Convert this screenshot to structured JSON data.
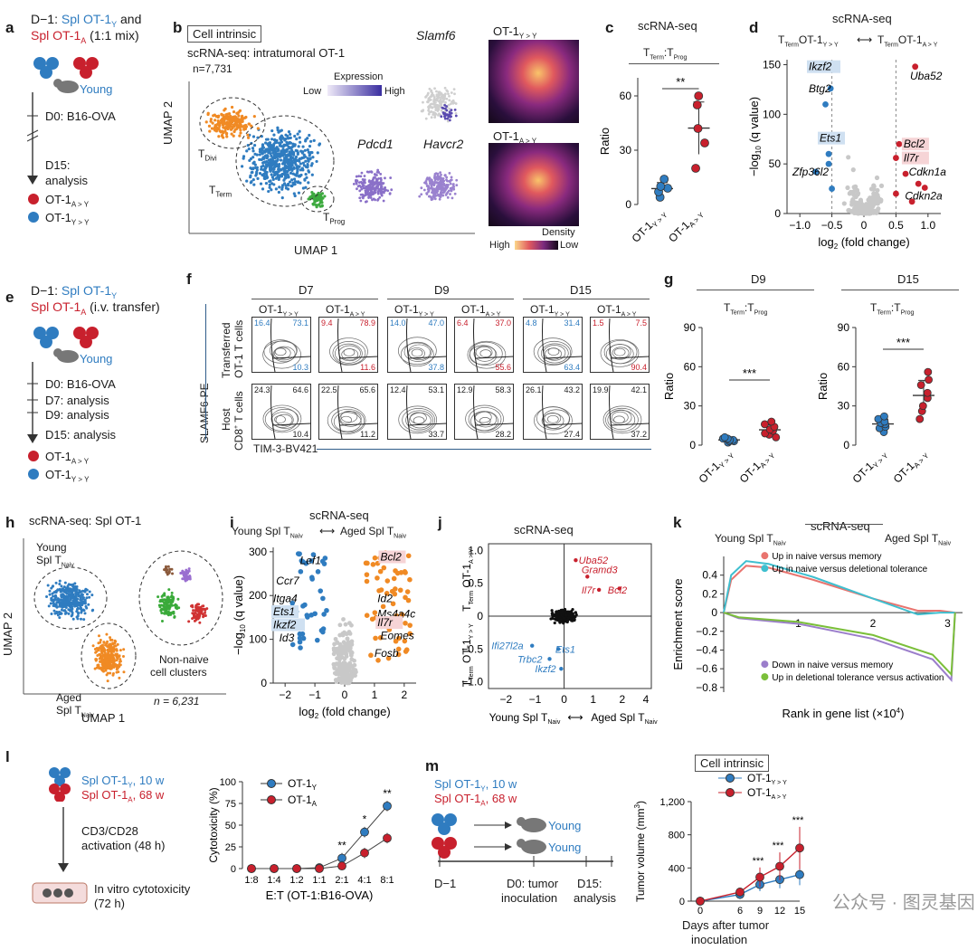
{
  "colors": {
    "young": "#2f7cc0",
    "aged": "#c8202d",
    "orange": "#f08a24",
    "green": "#3daa3f",
    "grey": "#c8c8c8",
    "pink": "#e9746f",
    "teal": "#3fbfcf",
    "purple": "#9b7ecb",
    "lime": "#7bbf3a"
  },
  "a": {
    "label": "a",
    "d1": "D−1:",
    "spl_y": "Spl OT-1",
    "spl_y_sub": "Y",
    "and": " and",
    "spl_a": "Spl OT-1",
    "spl_a_sub": "A",
    "mix": "(1:1 mix)",
    "young": "Young",
    "d0": "D0: B16-OVA",
    "d15": "D15:",
    "analysis": "analysis",
    "leg1": "OT-1",
    "leg1_sub": "A > Y",
    "leg2": "OT-1",
    "leg2_sub": "Y > Y"
  },
  "b": {
    "label": "b",
    "box": "Cell intrinsic",
    "title": "scRNA-seq: intratumoral OT-1",
    "n": "n=7,731",
    "expression": "Expression",
    "low": "Low",
    "high": "High",
    "slamf6": "Slamf6",
    "pdcd1": "Pdcd1",
    "havcr2": "Havcr2",
    "tdivi": "T",
    "tdivi_sub": "Divi",
    "tterm": "T",
    "tterm_sub": "Term",
    "tprog": "T",
    "tprog_sub": "Prog",
    "umap1": "UMAP 1",
    "umap2": "UMAP 2",
    "ot1yy": "OT-1",
    "ot1yy_sub": "Y > Y",
    "ot1ay": "OT-1",
    "ot1ay_sub": "A > Y",
    "density": "Density",
    "dhigh": "High",
    "dlow": "Low"
  },
  "c": {
    "label": "c",
    "title": "scRNA-seq",
    "ratio": "T",
    "ratio_sub1": "Term",
    "ratio_mid": ":T",
    "ratio_sub2": "Prog",
    "ylabel": "Ratio",
    "sig": "**",
    "yticks": [
      "0",
      "30",
      "60"
    ],
    "x1": "OT-1",
    "x1_sub": "Y > Y",
    "x2": "OT-1",
    "x2_sub": "A > Y"
  },
  "chart_data": [
    {
      "panel": "c",
      "type": "scatter",
      "title": "scRNA-seq",
      "ylabel": "Ratio",
      "ylim": [
        0,
        70
      ],
      "categories": [
        "OT-1 Y > Y",
        "OT-1 A > Y"
      ],
      "series": [
        {
          "name": "OT-1 Y > Y",
          "values": [
            4,
            7,
            9,
            10,
            14
          ]
        },
        {
          "name": "OT-1 A > Y",
          "values": [
            20,
            34,
            42,
            55,
            60
          ]
        }
      ],
      "significance": "**"
    },
    {
      "panel": "d",
      "type": "scatter",
      "title": "scRNA-seq",
      "xlabel": "log2 (fold change)",
      "ylabel": "−log10 (q value)",
      "xlim": [
        -1.2,
        1.2
      ],
      "ylim": [
        0,
        155
      ],
      "labels": [
        "Ikzf2",
        "Btg2",
        "Uba52",
        "Ets1",
        "Zfp36l2",
        "Bcl2",
        "Il7r",
        "Cdkn1a",
        "Cdkn2a"
      ]
    },
    {
      "panel": "g-D9",
      "type": "scatter",
      "title": "D9",
      "ylabel": "Ratio",
      "ylim": [
        0,
        90
      ],
      "categories": [
        "OT-1 Y > Y",
        "OT-1 A > Y"
      ],
      "series": [
        {
          "name": "OT-1 Y > Y",
          "values": [
            2,
            3,
            3,
            4,
            4,
            5,
            5,
            6
          ]
        },
        {
          "name": "OT-1 A > Y",
          "values": [
            6,
            8,
            9,
            11,
            12,
            14,
            16,
            18
          ]
        }
      ],
      "significance": "***"
    },
    {
      "panel": "g-D15",
      "type": "scatter",
      "title": "D15",
      "ylabel": "Ratio",
      "ylim": [
        0,
        90
      ],
      "categories": [
        "OT-1 Y > Y",
        "OT-1 A > Y"
      ],
      "series": [
        {
          "name": "OT-1 Y > Y",
          "values": [
            10,
            13,
            14,
            16,
            17,
            18,
            20,
            22
          ]
        },
        {
          "name": "OT-1 A > Y",
          "values": [
            20,
            26,
            30,
            36,
            40,
            46,
            50,
            56
          ]
        }
      ],
      "significance": "***"
    },
    {
      "panel": "l",
      "type": "line",
      "ylabel": "Cytotoxicity (%)",
      "xlabel": "E:T (OT-1:B16-OVA)",
      "ylim": [
        0,
        100
      ],
      "categories": [
        "1:8",
        "1:4",
        "1:2",
        "1:1",
        "2:1",
        "4:1",
        "8:1"
      ],
      "series": [
        {
          "name": "OT-1Y",
          "values": [
            0,
            0,
            0,
            1,
            12,
            42,
            72
          ]
        },
        {
          "name": "OT-1A",
          "values": [
            0,
            0,
            0,
            0,
            3,
            18,
            35
          ]
        }
      ],
      "significance": [
        "",
        "",
        "",
        "",
        "**",
        "*",
        "**"
      ]
    },
    {
      "panel": "m",
      "type": "line",
      "ylabel": "Tumor volume (mm3)",
      "xlabel": "Days after tumor inoculation",
      "ylim": [
        0,
        1200
      ],
      "x": [
        0,
        6,
        9,
        12,
        15
      ],
      "series": [
        {
          "name": "OT-1 Y > Y",
          "values": [
            0,
            80,
            200,
            260,
            320
          ]
        },
        {
          "name": "OT-1 A > Y",
          "values": [
            0,
            110,
            290,
            420,
            640
          ]
        }
      ],
      "significance": [
        "",
        "",
        "***",
        "***",
        "***"
      ]
    }
  ],
  "d": {
    "label": "d",
    "title": "scRNA-seq",
    "tl": "T",
    "tl_sub": "Term",
    "tl_ot": "OT-1",
    "tl_ot_sub": "Y > Y",
    "tr": "T",
    "tr_sub": "Term",
    "tr_ot": "OT-1",
    "tr_ot_sub": "A > Y",
    "yticks": [
      "0",
      "50",
      "100",
      "150"
    ],
    "xticks": [
      "−1.0",
      "−0.5",
      "0",
      "0.5",
      "1.0"
    ],
    "ylabel": "−log",
    "ylabel_sub": "10",
    "ylabel_rest": " (q value)",
    "xlabel": "log",
    "xlabel_sub": "2",
    "xlabel_rest": " (fold change)",
    "genes": {
      "ikzf2": "Ikzf2",
      "btg2": "Btg2",
      "uba52": "Uba52",
      "ets1": "Ets1",
      "zfp": "Zfp36l2",
      "bcl2": "Bcl2",
      "il7r": "Il7r",
      "cdkn1a": "Cdkn1a",
      "cdkn2a": "Cdkn2a"
    }
  },
  "e": {
    "label": "e",
    "d1": "D−1:",
    "spl_y": "Spl OT-1",
    "spl_y_sub": "Y",
    "spl_a": "Spl OT-1",
    "spl_a_sub": "A",
    "ivt": " (i.v. transfer)",
    "young": "Young",
    "d0": "D0: B16-OVA",
    "d7": "D7: analysis",
    "d9": "D9: analysis",
    "d15": "D15: analysis",
    "leg1": "OT-1",
    "leg1_sub": "A > Y",
    "leg2": "OT-1",
    "leg2_sub": "Y > Y"
  },
  "f": {
    "label": "f",
    "days": [
      "D7",
      "D9",
      "D15"
    ],
    "cols": [
      {
        "n": "OT-1",
        "s": "Y > Y"
      },
      {
        "n": "OT-1",
        "s": "A > Y"
      },
      {
        "n": "OT-1",
        "s": "Y > Y"
      },
      {
        "n": "OT-1",
        "s": "A > Y"
      },
      {
        "n": "OT-1",
        "s": "Y > Y"
      },
      {
        "n": "OT-1",
        "s": "A > Y"
      }
    ],
    "row1a": "Transferred",
    "row1b": "OT-1 T cells",
    "row2a": "Host",
    "row2b": "CD8",
    "row2b_sup": "+",
    "row2b_rest": " T cells",
    "ylab": "SLAMF6-PE",
    "xlab": "TIM-3-BV421",
    "top": [
      [
        "16.4",
        "73.1",
        "10.3"
      ],
      [
        "9.4",
        "78.9",
        "11.6"
      ],
      [
        "14.0",
        "47.0",
        "37.8"
      ],
      [
        "6.4",
        "37.0",
        "55.6"
      ],
      [
        "4.8",
        "31.4",
        "63.4"
      ],
      [
        "1.5",
        "7.5",
        "90.4"
      ]
    ],
    "bottom": [
      [
        "24.3",
        "64.6",
        "10.4"
      ],
      [
        "22.5",
        "65.6",
        "11.2"
      ],
      [
        "12.4",
        "53.1",
        "33.7"
      ],
      [
        "12.9",
        "58.3",
        "28.2"
      ],
      [
        "26.1",
        "43.2",
        "27.4"
      ],
      [
        "19.9",
        "42.1",
        "37.2"
      ]
    ]
  },
  "g": {
    "label": "g",
    "d9": "D9",
    "d15": "D15",
    "ratio": "T",
    "ratio_sub1": "Term",
    "ratio_mid": ":T",
    "ratio_sub2": "Prog",
    "ylabel": "Ratio",
    "sig": "***",
    "yticks": [
      "0",
      "30",
      "60",
      "90"
    ],
    "x1": "OT-1",
    "x1_sub": "Y > Y",
    "x2": "OT-1",
    "x2_sub": "A > Y"
  },
  "h": {
    "label": "h",
    "title": "scRNA-seq: Spl OT-1",
    "young1": "Young",
    "young2": "Spl T",
    "young2_sub": "Naiv",
    "aged1": "Aged",
    "aged2": "Spl T",
    "aged2_sub": "Naiv",
    "nonnaive1": "Non-naive",
    "nonnaive2": "cell clusters",
    "n": "n = 6,231",
    "umap1": "UMAP 1",
    "umap2": "UMAP 2"
  },
  "i": {
    "label": "i",
    "title": "scRNA-seq",
    "young": "Young Spl T",
    "young_sub": "Naiv",
    "aged": "Aged Spl T",
    "aged_sub": "Naiv",
    "yticks": [
      "0",
      "100",
      "200",
      "300"
    ],
    "xticks": [
      "−2",
      "−1",
      "0",
      "1",
      "2"
    ],
    "ylabel": "−log",
    "ylabel_sub": "10",
    "ylabel_rest": " (q value)",
    "xlabel": "log",
    "xlabel_sub": "2",
    "xlabel_rest": " (fold change)",
    "genes": {
      "lef1": "Lef1",
      "ccr7": "Ccr7",
      "itga4": "Itga4",
      "ets1": "Ets1",
      "ikzf2": "Ikzf2",
      "id3": "Id3",
      "bcl2": "Bcl2",
      "id2": "Id2",
      "ms4a4c": "Ms4a4c",
      "il7r": "Il7r",
      "eomes": "Eomes",
      "fosb": "Fosb"
    }
  },
  "j": {
    "label": "j",
    "title": "scRNA-seq",
    "yticks": [
      "1.0",
      "0.5",
      "0",
      "−0.5",
      "−1.0"
    ],
    "xticks": [
      "−2",
      "−1",
      "0",
      "1",
      "2",
      "4"
    ],
    "yl_top": "T",
    "yl_top_sub": "Term",
    "yl_top_ot": "OT-1",
    "yl_top_ot_sub": "A > Y",
    "yl_bot": "T",
    "yl_bot_sub": "Term",
    "yl_bot_ot": "OT-1",
    "yl_bot_ot_sub": "Y > Y",
    "xl_left": "Young Spl T",
    "xl_left_sub": "Naiv",
    "xl_right": "Aged Spl T",
    "xl_right_sub": "Naiv",
    "genes": {
      "uba52": "Uba52",
      "gramd3": "Gramd3",
      "il7r": "Il7r",
      "bcl2": "Bcl2",
      "ifi": "Ifi27l2a",
      "ets1": "Ets1",
      "trbc2": "Trbc2",
      "ikzf2": "Ikzf2"
    }
  },
  "k": {
    "label": "k",
    "title": "scRNA-seq",
    "left": "Young Spl T",
    "left_sub": "Naiv",
    "right": "Aged Spl T",
    "right_sub": "Naiv",
    "leg1": "Up in naive versus memory",
    "leg2": "Up in naive versus deletional tolerance",
    "leg3": "Down in naive versus memory",
    "leg4": "Up in deletional tolerance versus activation",
    "yticks": [
      "0.4",
      "0.2",
      "0",
      "−0.2",
      "−0.4",
      "−0.6",
      "−0.8"
    ],
    "xticks": [
      "1",
      "2",
      "3"
    ],
    "ylabel": "Enrichment score",
    "xlabel": "Rank in gene list (×10",
    "xlabel_sup": "4",
    "xlabel_end": ")"
  },
  "l": {
    "label": "l",
    "spl_y": "Spl OT-1",
    "spl_y_sub": "Y",
    "spl_y_age": ", 10 w",
    "spl_a": "Spl OT-1",
    "spl_a_sub": "A",
    "spl_a_age": ", 68 w",
    "cd3": "CD3/CD28",
    "act": "activation (48 h)",
    "vitro": "In vitro cytotoxicity",
    "vitro2": "(72 h)",
    "ylabel": "Cytotoxicity (%)",
    "yticks": [
      "0",
      "25",
      "50",
      "75",
      "100"
    ],
    "xticks": [
      "1:8",
      "1:4",
      "1:2",
      "1:1",
      "2:1",
      "4:1",
      "8:1"
    ],
    "xlabel": "E:T (OT-1:B16-OVA)",
    "leg1": "OT-1",
    "leg1_sub": "Y",
    "leg2": "OT-1",
    "leg2_sub": "A",
    "sig": [
      "**",
      "*",
      "**"
    ]
  },
  "m": {
    "label": "m",
    "spl_y": "Spl OT-1",
    "spl_y_sub": "Y",
    "spl_y_age": ", 10 w",
    "spl_a": "Spl OT-1",
    "spl_a_sub": "A",
    "spl_a_age": ", 68 w",
    "young1": "Young",
    "young2": "Young",
    "d1": "D−1",
    "d0a": "D0: tumor",
    "d0b": "inoculation",
    "d15a": "D15:",
    "d15b": "analysis",
    "box": "Cell intrinsic",
    "leg1": "OT-1",
    "leg1_sub": "Y > Y",
    "leg2": "OT-1",
    "leg2_sub": "A > Y",
    "ylabel": "Tumor volume (mm",
    "ylabel_sup": "3",
    "ylabel_end": ")",
    "yticks": [
      "0",
      "400",
      "800",
      "1,200"
    ],
    "xticks": [
      "0",
      "6",
      "9",
      "12",
      "15"
    ],
    "xlabel1": "Days after tumor",
    "xlabel2": "inoculation",
    "sig": "***"
  },
  "watermark": "公众号 · 图灵基因"
}
